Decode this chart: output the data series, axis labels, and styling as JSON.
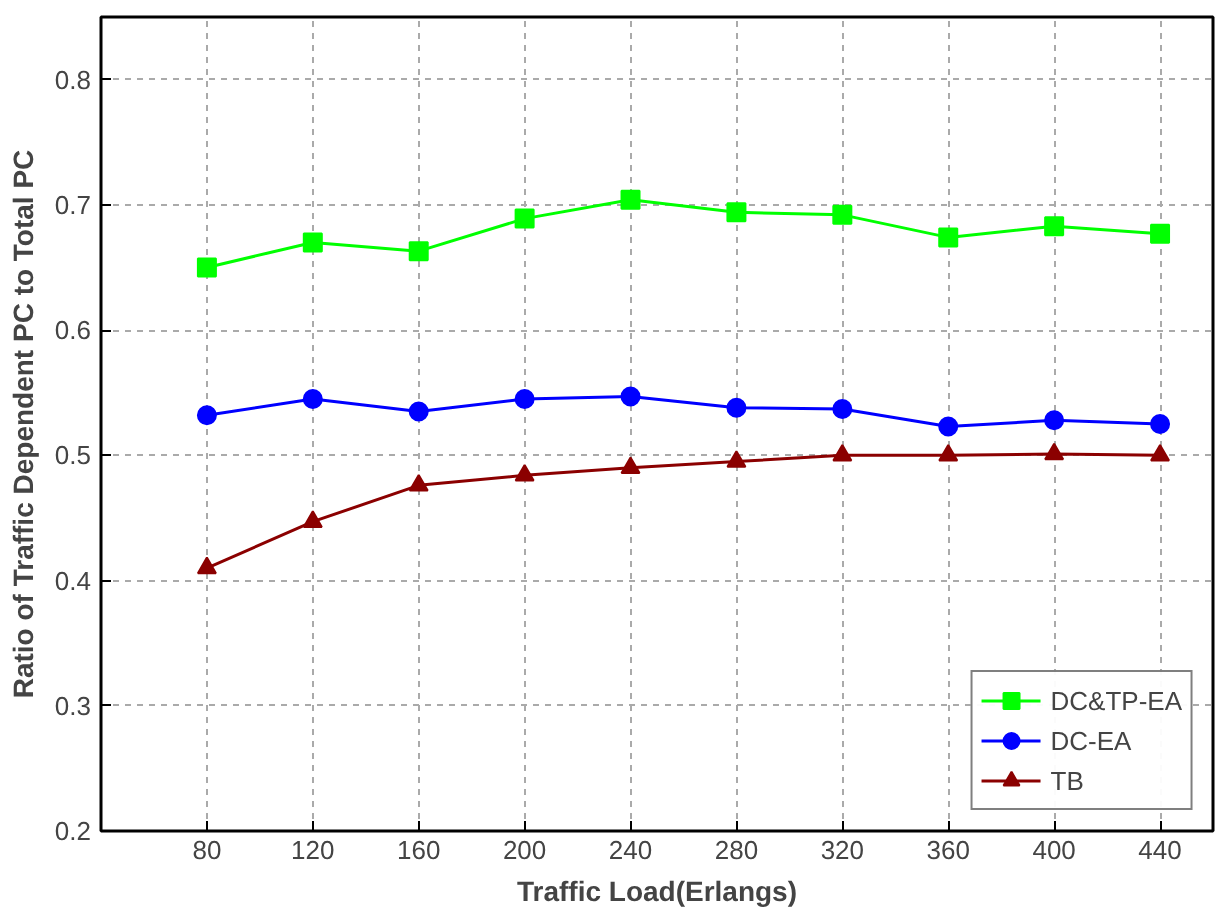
{
  "chart_data": {
    "type": "line",
    "xlabel": "Traffic Load(Erlangs)",
    "ylabel": "Ratio of Traffic Dependent PC to Total PC",
    "x": [
      80,
      120,
      160,
      200,
      240,
      280,
      320,
      360,
      400,
      440
    ],
    "series": [
      {
        "name": "DC&TP-EA",
        "color": "#00ff00",
        "marker": "square",
        "values": [
          0.65,
          0.67,
          0.663,
          0.689,
          0.704,
          0.694,
          0.692,
          0.674,
          0.683,
          0.677
        ]
      },
      {
        "name": "DC-EA",
        "color": "#0000ff",
        "marker": "circle",
        "values": [
          0.532,
          0.545,
          0.535,
          0.545,
          0.547,
          0.538,
          0.537,
          0.523,
          0.528,
          0.525
        ]
      },
      {
        "name": "TB",
        "color": "#8b0000",
        "marker": "triangle",
        "values": [
          0.41,
          0.447,
          0.476,
          0.484,
          0.49,
          0.495,
          0.5,
          0.5,
          0.501,
          0.5
        ]
      }
    ],
    "xlim": [
      40,
      460
    ],
    "xticks": [
      80,
      120,
      160,
      200,
      240,
      280,
      320,
      360,
      400,
      440
    ],
    "ylim": [
      0.2,
      0.85
    ],
    "yticks": [
      0.2,
      0.3,
      0.4,
      0.5,
      0.6,
      0.7,
      0.8
    ],
    "grid": true,
    "legend": "bottom right"
  }
}
